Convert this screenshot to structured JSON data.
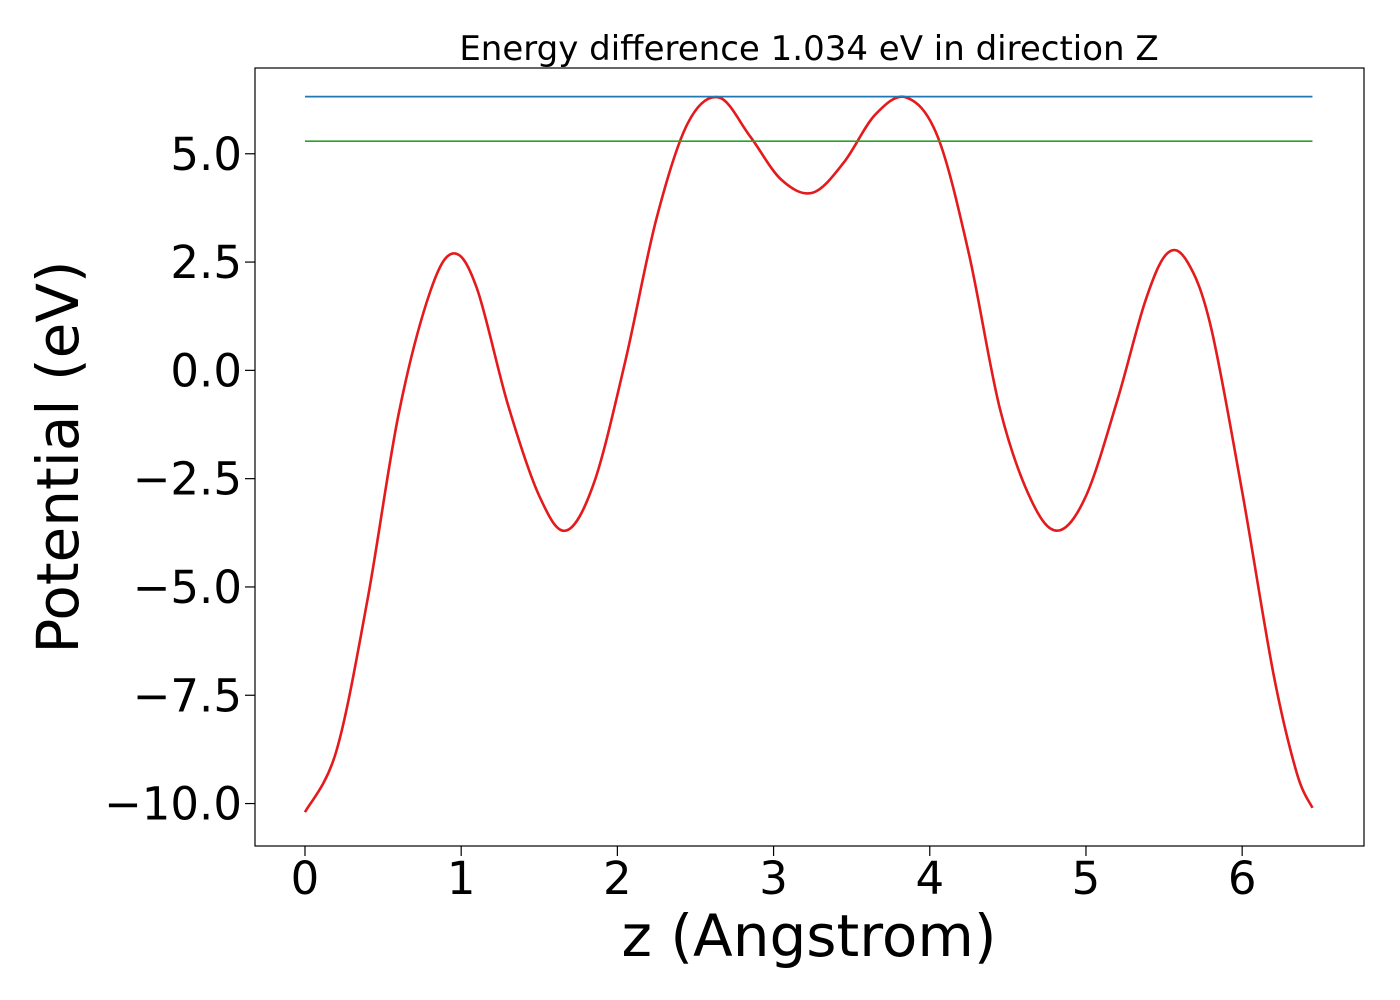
{
  "chart_data": {
    "type": "line",
    "title": "Energy difference 1.034 eV in direction Z",
    "xlabel": "z (Angstrom)",
    "ylabel": "Potential (eV)",
    "xlim": [
      -0.32,
      6.78
    ],
    "ylim": [
      -10.98,
      6.98
    ],
    "x_ticks": [
      0,
      1,
      2,
      3,
      4,
      5,
      6
    ],
    "x_tick_labels": [
      "0",
      "1",
      "2",
      "3",
      "4",
      "5",
      "6"
    ],
    "y_ticks": [
      5.0,
      2.5,
      0.0,
      -2.5,
      -5.0,
      -7.5,
      -10.0
    ],
    "y_tick_labels": [
      "5.0",
      "2.5",
      "0.0",
      "−2.5",
      "−5.0",
      "−7.5",
      "−10.0"
    ],
    "grid": false,
    "colors": {
      "curve": "#e41a1c",
      "max_line": "#1f77b4",
      "level_line": "#2ca02c"
    },
    "series": [
      {
        "x": [
          0.0,
          0.2,
          0.4,
          0.6,
          0.8,
          0.95,
          1.1,
          1.3,
          1.5,
          1.67,
          1.85,
          2.05,
          2.25,
          2.45,
          2.65,
          2.85,
          3.05,
          3.25,
          3.45,
          3.65,
          3.85,
          4.05,
          4.25,
          4.45,
          4.65,
          4.82,
          5.0,
          5.2,
          5.38,
          5.52,
          5.65,
          5.8,
          6.0,
          6.2,
          6.35,
          6.45
        ],
        "y": [
          -10.2,
          -8.8,
          -5.3,
          -1.0,
          1.8,
          2.7,
          1.9,
          -0.8,
          -2.9,
          -3.7,
          -2.6,
          0.2,
          3.5,
          5.7,
          6.3,
          5.4,
          4.4,
          4.1,
          4.8,
          5.9,
          6.3,
          5.4,
          2.7,
          -0.9,
          -3.0,
          -3.7,
          -2.9,
          -0.7,
          1.6,
          2.7,
          2.5,
          1.0,
          -2.8,
          -7.0,
          -9.3,
          -10.1
        ]
      },
      {
        "x": [
          0.0,
          6.45
        ],
        "y": [
          6.32,
          6.32
        ]
      },
      {
        "x": [
          0.0,
          6.45
        ],
        "y": [
          5.29,
          5.29
        ]
      }
    ]
  }
}
